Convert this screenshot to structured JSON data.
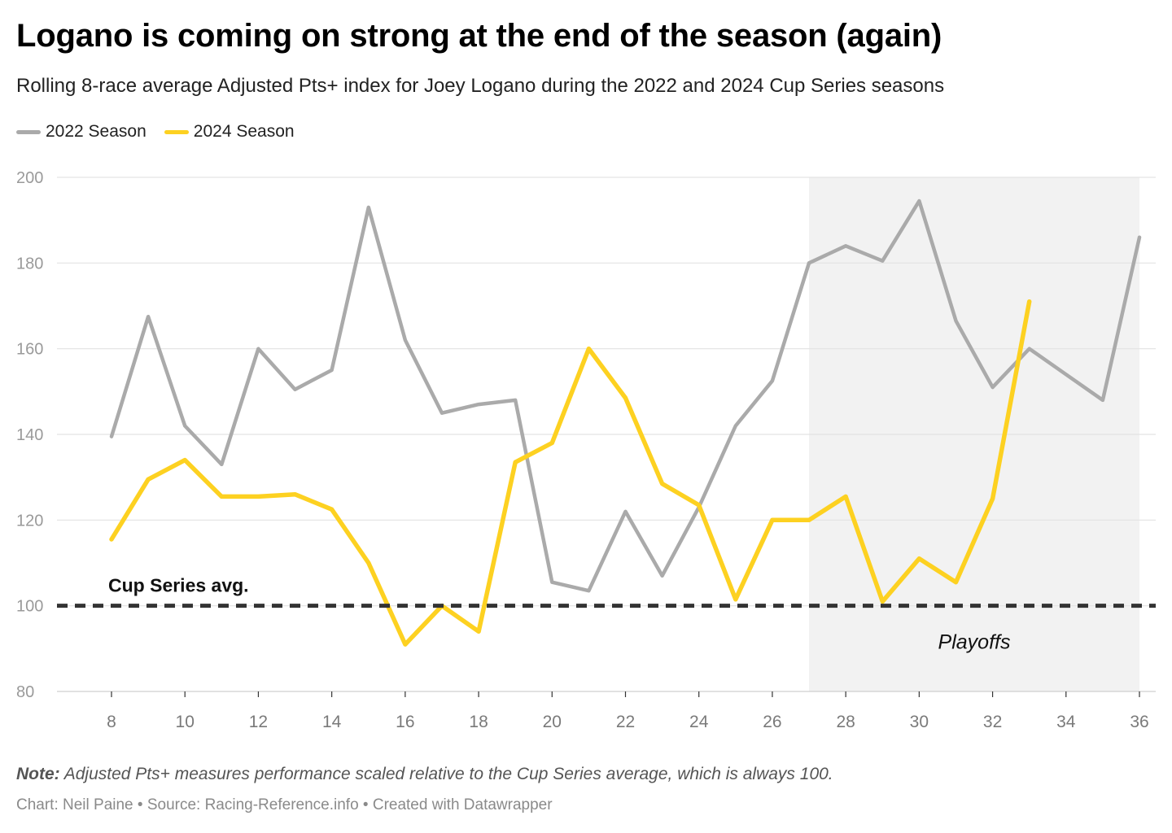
{
  "chart_data": {
    "type": "line",
    "title": "Logano is coming on strong at the end of the season (again)",
    "subtitle": "Rolling 8-race average Adjusted Pts+ index for Joey Logano during the 2022 and 2024 Cup Series seasons",
    "xlabel": "",
    "ylabel": "",
    "xlim": [
      8,
      36
    ],
    "ylim": [
      80,
      200
    ],
    "x_ticks": [
      8,
      10,
      12,
      14,
      16,
      18,
      20,
      22,
      24,
      26,
      28,
      30,
      32,
      34,
      36
    ],
    "y_ticks": [
      80,
      100,
      120,
      140,
      160,
      180,
      200
    ],
    "grid": true,
    "legend_position": "top-left",
    "series": [
      {
        "name": "2022 Season",
        "color": "#aaaaaa",
        "x": [
          8,
          9,
          10,
          11,
          12,
          13,
          14,
          15,
          16,
          17,
          18,
          19,
          20,
          21,
          22,
          23,
          24,
          25,
          26,
          27,
          28,
          29,
          30,
          31,
          32,
          33,
          34,
          35,
          36
        ],
        "values": [
          139.5,
          167.5,
          142,
          133,
          160,
          150.5,
          155,
          193,
          162,
          145,
          147,
          148,
          105.5,
          103.5,
          122,
          107,
          123,
          142,
          152.5,
          180,
          184,
          180.5,
          194.5,
          166.5,
          151,
          160,
          154,
          148,
          186
        ]
      },
      {
        "name": "2024 Season",
        "color": "#fdd121",
        "x": [
          8,
          9,
          10,
          11,
          12,
          13,
          14,
          15,
          16,
          17,
          18,
          19,
          20,
          21,
          22,
          23,
          24,
          25,
          26,
          27,
          28,
          29,
          30,
          31,
          32,
          33
        ],
        "values": [
          115.5,
          129.5,
          134,
          125.5,
          125.5,
          126,
          122.5,
          110,
          91,
          100,
          94,
          133.5,
          138,
          160,
          148.5,
          128.5,
          123.5,
          101.5,
          120,
          120,
          125.5,
          101,
          111,
          105.5,
          125,
          171
        ]
      }
    ],
    "reference_line": {
      "value": 100,
      "label": "Cup Series avg.",
      "color": "#333333"
    },
    "shaded_region": {
      "x_range": [
        27,
        36
      ],
      "label": "Playoffs",
      "color": "#f2f2f2"
    }
  },
  "legend": {
    "items": [
      {
        "label": "2022 Season",
        "color": "#aaaaaa"
      },
      {
        "label": "2024 Season",
        "color": "#fdd121"
      }
    ]
  },
  "footer": {
    "note_label": "Note:",
    "note_text": "Adjusted Pts+ measures performance scaled relative to the Cup Series average, which is always 100.",
    "credits": "Chart: Neil Paine • Source: Racing-Reference.info • Created with Datawrapper"
  }
}
